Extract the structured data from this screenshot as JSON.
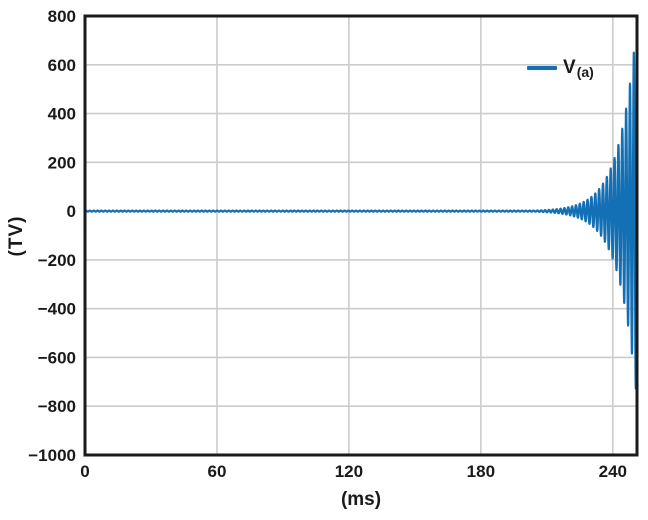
{
  "chart_data": {
    "type": "line",
    "title": "",
    "xlabel": "(ms)",
    "ylabel": "(TV)",
    "xlim": [
      0,
      251
    ],
    "ylim": [
      -1000,
      800
    ],
    "x_ticks": [
      0,
      60,
      120,
      180,
      240
    ],
    "y_ticks": [
      800,
      600,
      400,
      200,
      0,
      -200,
      -400,
      -600,
      -800,
      -1000
    ],
    "grid": true,
    "legend": {
      "main": "V",
      "sub": "(a)",
      "position": "upper-right"
    },
    "series": [
      {
        "name": "V(a)",
        "color": "#1470b5",
        "waveform": "oscillation-with-exponentially-growing-envelope",
        "frequency_cycles_per_ms": 0.57,
        "base_amplitude_tv": 2.2,
        "end_amplitude_tv": 780,
        "growth_rate_per_ms": 0.125,
        "t_start_ms": 0,
        "t_end_ms": 251,
        "sample_step_ms": 0.05,
        "envelope_points": [
          {
            "t_ms": 0,
            "amp_tv": 2
          },
          {
            "t_ms": 60,
            "amp_tv": 2
          },
          {
            "t_ms": 120,
            "amp_tv": 2
          },
          {
            "t_ms": 180,
            "amp_tv": 2
          },
          {
            "t_ms": 200,
            "amp_tv": 2
          },
          {
            "t_ms": 210,
            "amp_tv": 5
          },
          {
            "t_ms": 220,
            "amp_tv": 16
          },
          {
            "t_ms": 230,
            "amp_tv": 56
          },
          {
            "t_ms": 240,
            "amp_tv": 197
          },
          {
            "t_ms": 245,
            "amp_tv": 368
          },
          {
            "t_ms": 250,
            "amp_tv": 688
          },
          {
            "t_ms": 251,
            "amp_tv": 780
          }
        ]
      }
    ],
    "colors": {
      "line": "#1470b5",
      "grid": "#cccccc",
      "axis": "#1a1a1a",
      "text": "#1a1a1a",
      "background": "#ffffff"
    }
  }
}
